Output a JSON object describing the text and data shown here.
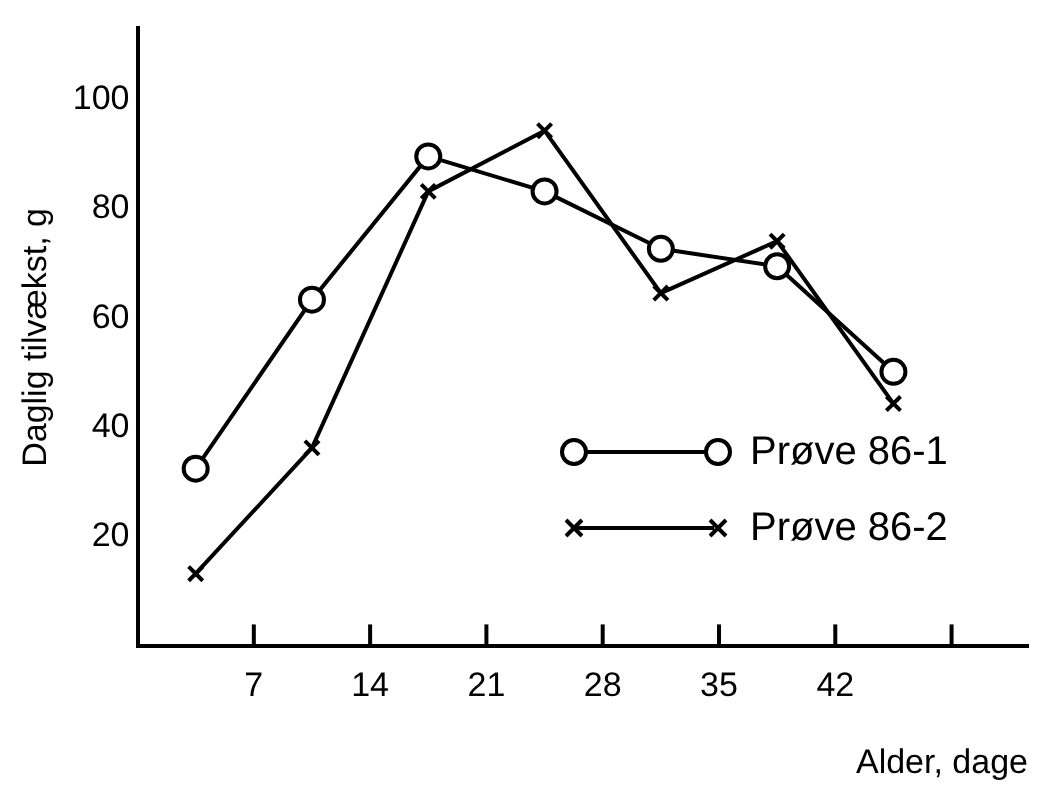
{
  "chart_data": {
    "type": "line",
    "xlabel": "Alder, dage",
    "ylabel": "Daglig tilvækst, g",
    "xlim": [
      0,
      53.6
    ],
    "xticks": [
      7,
      14,
      21,
      28,
      35,
      42,
      {
        "value": 49,
        "label": null
      }
    ],
    "ylim": [
      0,
      113
    ],
    "yticks": [
      20,
      40,
      60,
      80,
      100
    ],
    "grid": false,
    "legend": "bottom right",
    "series": [
      {
        "name": "Prøve 86-1",
        "color": "#000000",
        "marker": "circle",
        "x": [
          3.5,
          10.5,
          17.5,
          24.5,
          31.5,
          38.5,
          45.5
        ],
        "values": [
          32.5,
          63.4,
          89.6,
          83.2,
          72.7,
          69.5,
          50.2
        ]
      },
      {
        "name": "Prøve 86-2",
        "color": "#000000",
        "marker": "cross",
        "x": [
          3.5,
          10.5,
          17.5,
          24.5,
          31.5,
          38.5,
          45.5
        ],
        "values": [
          13.3,
          36.3,
          83.2,
          94.3,
          64.6,
          74.1,
          44.4
        ]
      }
    ]
  }
}
